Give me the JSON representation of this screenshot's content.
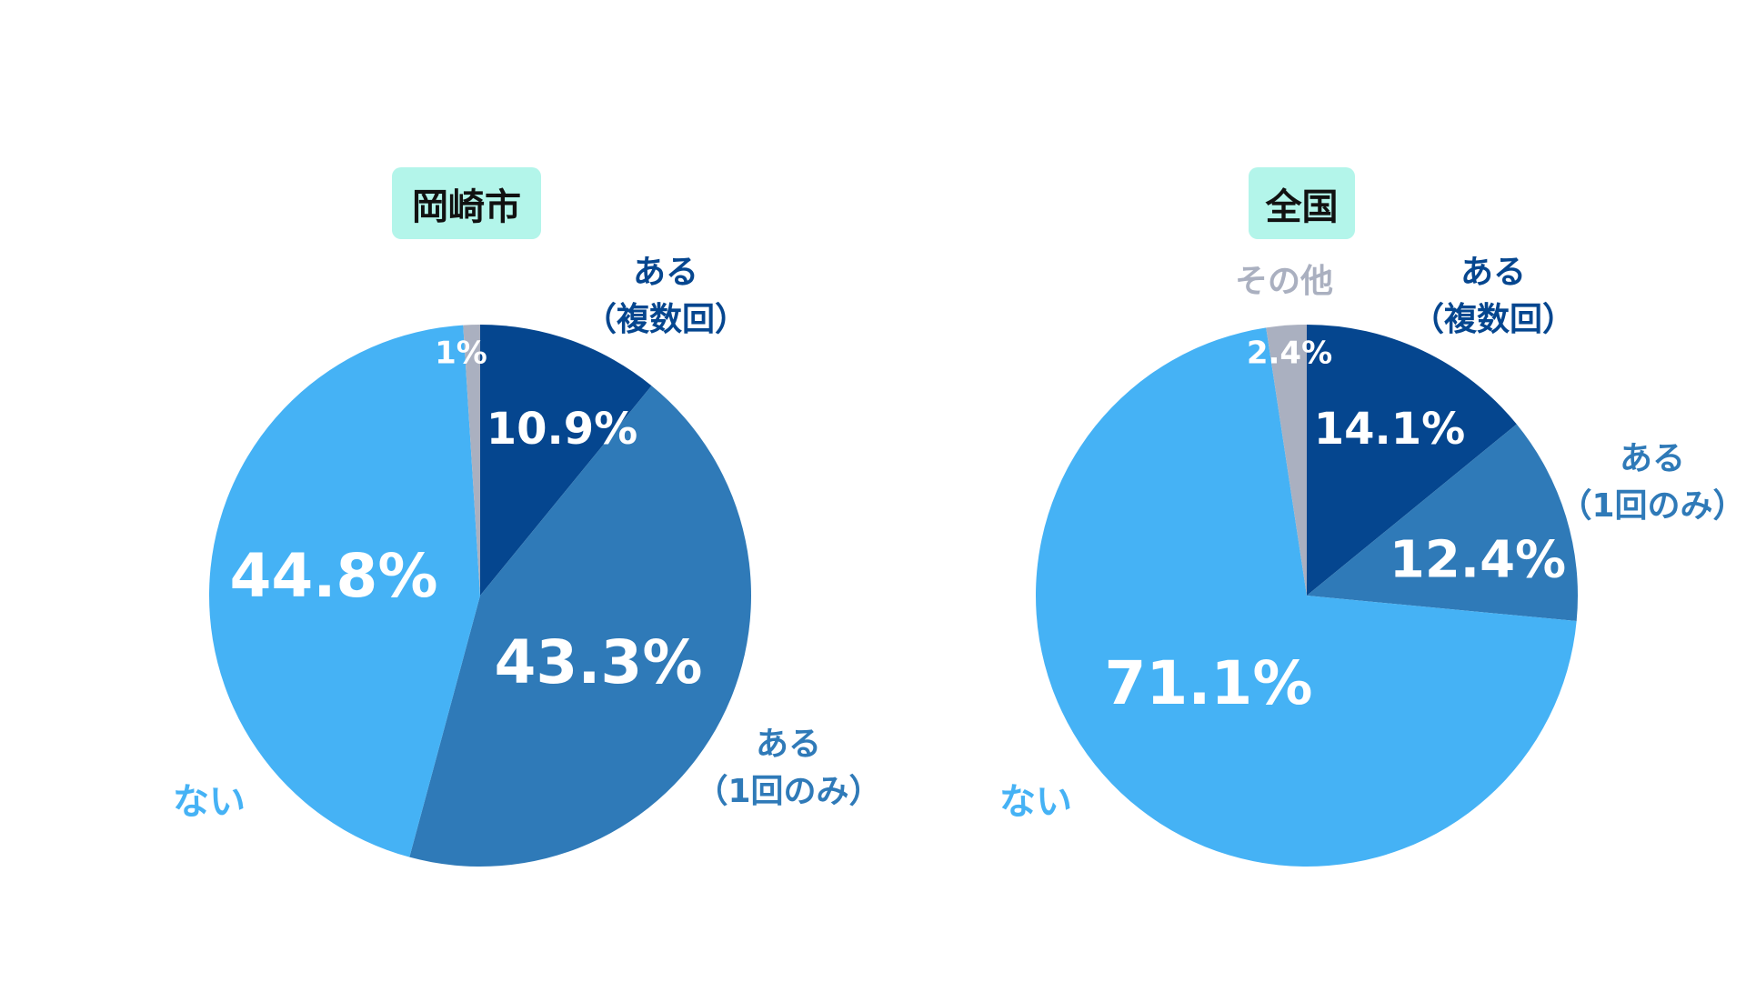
{
  "colors": {
    "multiple": "#05468f",
    "once": "#2f7ab8",
    "none": "#45b2f5",
    "other": "#aab0c0",
    "title_bg": "#b3f5ea"
  },
  "chart_data": [
    {
      "type": "pie",
      "title": "岡崎市",
      "start": "12 o'clock, clockwise",
      "categories": [
        "ある（複数回）",
        "ある（1回のみ）",
        "ない",
        "その他"
      ],
      "values": [
        10.9,
        43.3,
        44.8,
        1
      ],
      "value_labels": [
        "10.9%",
        "43.3%",
        "44.8%",
        "1%"
      ],
      "category_labels": {
        "multiple_line1": "ある",
        "multiple_line2": "（複数回）",
        "once_line1": "ある",
        "once_line2": "（1回のみ）",
        "none": "ない"
      }
    },
    {
      "type": "pie",
      "title": "全国",
      "start": "12 o'clock, clockwise",
      "categories": [
        "ある（複数回）",
        "ある（1回のみ）",
        "ない",
        "その他"
      ],
      "values": [
        14.1,
        12.4,
        71.1,
        2.4
      ],
      "value_labels": [
        "14.1%",
        "12.4%",
        "71.1%",
        "2.4%"
      ],
      "category_labels": {
        "multiple_line1": "ある",
        "multiple_line2": "（複数回）",
        "once_line1": "ある",
        "once_line2": "（1回のみ）",
        "none": "ない",
        "other": "その他"
      }
    }
  ]
}
